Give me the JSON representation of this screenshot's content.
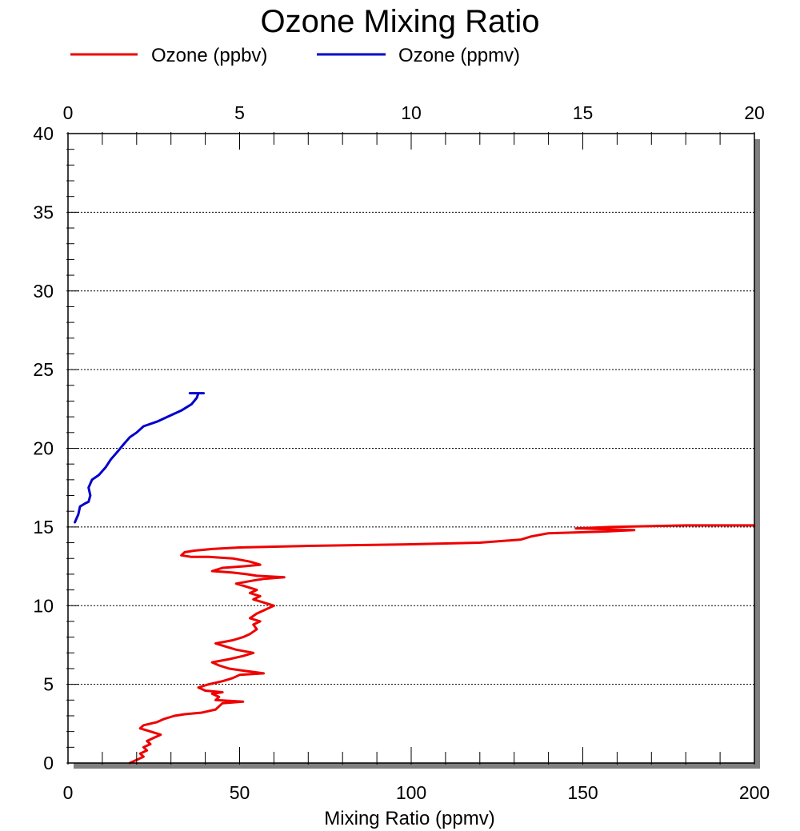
{
  "chart_data": {
    "type": "line",
    "title": "Ozone Mixing Ratio",
    "xlabel": "Mixing Ratio (ppmv)",
    "ylabel": "",
    "bottom_axis": {
      "range": [
        0,
        200
      ],
      "ticks": [
        0,
        50,
        100,
        150,
        200
      ]
    },
    "top_axis": {
      "range": [
        0,
        20
      ],
      "ticks": [
        0,
        5,
        10,
        15,
        20
      ]
    },
    "y_axis": {
      "range": [
        0,
        40
      ],
      "ticks": [
        0,
        5,
        10,
        15,
        20,
        25,
        30,
        35,
        40
      ],
      "minor_step": 1
    },
    "grid": "horizontal dotted at major y ticks",
    "legend": {
      "placement": "top"
    },
    "colors": {
      "ozone_ppbv": "#ee0000",
      "ozone_ppmv": "#0000cc",
      "shadow": "#808080"
    },
    "series": [
      {
        "name": "Ozone (ppbv)",
        "axis": "bottom",
        "color": "#ee0000",
        "points": [
          [
            18,
            0.0
          ],
          [
            20,
            0.2
          ],
          [
            22,
            0.4
          ],
          [
            21,
            0.6
          ],
          [
            23,
            0.8
          ],
          [
            22,
            1.0
          ],
          [
            24,
            1.2
          ],
          [
            23,
            1.4
          ],
          [
            25,
            1.6
          ],
          [
            27,
            1.8
          ],
          [
            24,
            2.0
          ],
          [
            21,
            2.2
          ],
          [
            22,
            2.4
          ],
          [
            26,
            2.6
          ],
          [
            28,
            2.8
          ],
          [
            31,
            3.0
          ],
          [
            34,
            3.1
          ],
          [
            39,
            3.2
          ],
          [
            43,
            3.4
          ],
          [
            44,
            3.6
          ],
          [
            45,
            3.8
          ],
          [
            51,
            3.9
          ],
          [
            43,
            4.0
          ],
          [
            44,
            4.2
          ],
          [
            42,
            4.4
          ],
          [
            45,
            4.5
          ],
          [
            40,
            4.6
          ],
          [
            38,
            4.8
          ],
          [
            41,
            5.0
          ],
          [
            45,
            5.2
          ],
          [
            48,
            5.4
          ],
          [
            50,
            5.6
          ],
          [
            57,
            5.7
          ],
          [
            50,
            5.9
          ],
          [
            47,
            6.0
          ],
          [
            44,
            6.2
          ],
          [
            42,
            6.4
          ],
          [
            47,
            6.6
          ],
          [
            51,
            6.8
          ],
          [
            54,
            7.0
          ],
          [
            49,
            7.2
          ],
          [
            46,
            7.4
          ],
          [
            43,
            7.6
          ],
          [
            48,
            7.8
          ],
          [
            51,
            8.0
          ],
          [
            53,
            8.2
          ],
          [
            55,
            8.5
          ],
          [
            54,
            8.8
          ],
          [
            56,
            9.0
          ],
          [
            53,
            9.2
          ],
          [
            55,
            9.5
          ],
          [
            57,
            9.7
          ],
          [
            60,
            10.0
          ],
          [
            57,
            10.2
          ],
          [
            54,
            10.4
          ],
          [
            56,
            10.6
          ],
          [
            53,
            10.8
          ],
          [
            55,
            11.0
          ],
          [
            52,
            11.2
          ],
          [
            49,
            11.4
          ],
          [
            54,
            11.6
          ],
          [
            57,
            11.7
          ],
          [
            63,
            11.8
          ],
          [
            55,
            11.9
          ],
          [
            52,
            12.0
          ],
          [
            48,
            12.1
          ],
          [
            42,
            12.2
          ],
          [
            45,
            12.4
          ],
          [
            51,
            12.5
          ],
          [
            56,
            12.6
          ],
          [
            53,
            12.8
          ],
          [
            48,
            13.0
          ],
          [
            41,
            13.1
          ],
          [
            36,
            13.1
          ],
          [
            33,
            13.2
          ],
          [
            34,
            13.4
          ],
          [
            37,
            13.5
          ],
          [
            42,
            13.6
          ],
          [
            50,
            13.7
          ],
          [
            70,
            13.8
          ],
          [
            100,
            13.9
          ],
          [
            120,
            14.0
          ],
          [
            132,
            14.2
          ],
          [
            135,
            14.4
          ],
          [
            140,
            14.6
          ],
          [
            155,
            14.7
          ],
          [
            165,
            14.8
          ],
          [
            150,
            14.9
          ],
          [
            148,
            14.9
          ],
          [
            158,
            15.0
          ],
          [
            180,
            15.1
          ],
          [
            200,
            15.1
          ]
        ]
      },
      {
        "name": "Ozone (ppmv)",
        "axis": "top",
        "color": "#0000cc",
        "points": [
          [
            0.2,
            15.3
          ],
          [
            0.3,
            15.8
          ],
          [
            0.35,
            16.3
          ],
          [
            0.5,
            16.5
          ],
          [
            0.6,
            16.6
          ],
          [
            0.65,
            17.0
          ],
          [
            0.6,
            17.5
          ],
          [
            0.7,
            18.0
          ],
          [
            0.9,
            18.3
          ],
          [
            1.1,
            18.8
          ],
          [
            1.25,
            19.3
          ],
          [
            1.45,
            19.8
          ],
          [
            1.6,
            20.2
          ],
          [
            1.8,
            20.7
          ],
          [
            2.0,
            21.0
          ],
          [
            2.2,
            21.4
          ],
          [
            2.6,
            21.7
          ],
          [
            2.9,
            22.0
          ],
          [
            3.3,
            22.4
          ],
          [
            3.6,
            22.8
          ],
          [
            3.75,
            23.2
          ],
          [
            3.8,
            23.5
          ],
          [
            3.55,
            23.5
          ],
          [
            3.95,
            23.5
          ]
        ]
      }
    ]
  }
}
